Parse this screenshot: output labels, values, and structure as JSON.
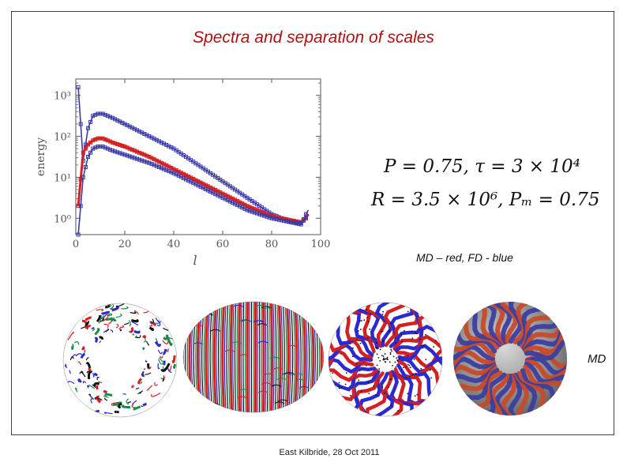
{
  "slide": {
    "title": "Spectra and separation of scales",
    "eq_line1": "P = 0.75, τ = 3 × 10⁴",
    "eq_line2": "R = 3.5 × 10⁶, Pₘ = 0.75",
    "legend_note": "MD – red, FD - blue",
    "md_label": "MD",
    "footer": "East Kilbride, 28 Oct 2011"
  },
  "chart_data": {
    "type": "line",
    "xlabel": "l",
    "ylabel": "energy",
    "x_ticks": [
      "0",
      "20",
      "40",
      "60",
      "80",
      "100"
    ],
    "y_ticks": [
      "10⁰",
      "10¹",
      "10²",
      "10³"
    ],
    "xlim": [
      0,
      100
    ],
    "ylim_log10": [
      -0.4,
      3.4
    ],
    "y_scale": "log",
    "series": [
      {
        "color": "#3a3aa8",
        "x": [
          1,
          3,
          5,
          7,
          9,
          11,
          13,
          15,
          20,
          30,
          40,
          50,
          60,
          70,
          80,
          88,
          92,
          94,
          95
        ],
        "log10_y": [
          3.2,
          1.4,
          2.2,
          2.5,
          2.55,
          2.55,
          2.5,
          2.45,
          2.3,
          2.0,
          1.7,
          1.3,
          0.9,
          0.5,
          0.1,
          -0.1,
          -0.15,
          0.1,
          0.2
        ]
      },
      {
        "color": "#d42020",
        "x": [
          1,
          3,
          5,
          7,
          9,
          11,
          13,
          15,
          20,
          30,
          40,
          50,
          60,
          70,
          80,
          88,
          92,
          94,
          95
        ],
        "log10_y": [
          0.3,
          1.6,
          1.8,
          1.9,
          1.95,
          1.95,
          1.9,
          1.85,
          1.75,
          1.5,
          1.2,
          0.9,
          0.6,
          0.3,
          0.05,
          -0.05,
          -0.1,
          0.0,
          0.1
        ]
      },
      {
        "color": "#3a3aa8",
        "x": [
          1,
          3,
          5,
          7,
          9,
          11,
          13,
          15,
          20,
          30,
          40,
          50,
          60,
          70,
          80,
          88,
          92,
          94,
          95
        ],
        "log10_y": [
          -0.4,
          1.0,
          1.5,
          1.7,
          1.75,
          1.75,
          1.7,
          1.65,
          1.55,
          1.35,
          1.1,
          0.8,
          0.5,
          0.2,
          0.0,
          -0.1,
          -0.12,
          0.0,
          0.1
        ]
      }
    ]
  },
  "panels": [
    {
      "name": "shell-cross-section-red-blue-field",
      "colors": [
        "#d42020",
        "#2a2ad0",
        "#111111",
        "#1a8a4a"
      ]
    },
    {
      "name": "mollweide-projection-field",
      "colors": [
        "#d42020",
        "#2a2ad0",
        "#111111",
        "#1a8a4a"
      ]
    },
    {
      "name": "full-disk-cross-section-field",
      "colors": [
        "#d42020",
        "#2a2ad0",
        "#111111"
      ]
    },
    {
      "name": "3d-sphere-rendering-md",
      "colors": [
        "#c84a2a",
        "#3b3ea0",
        "#9a9a9a"
      ]
    }
  ]
}
